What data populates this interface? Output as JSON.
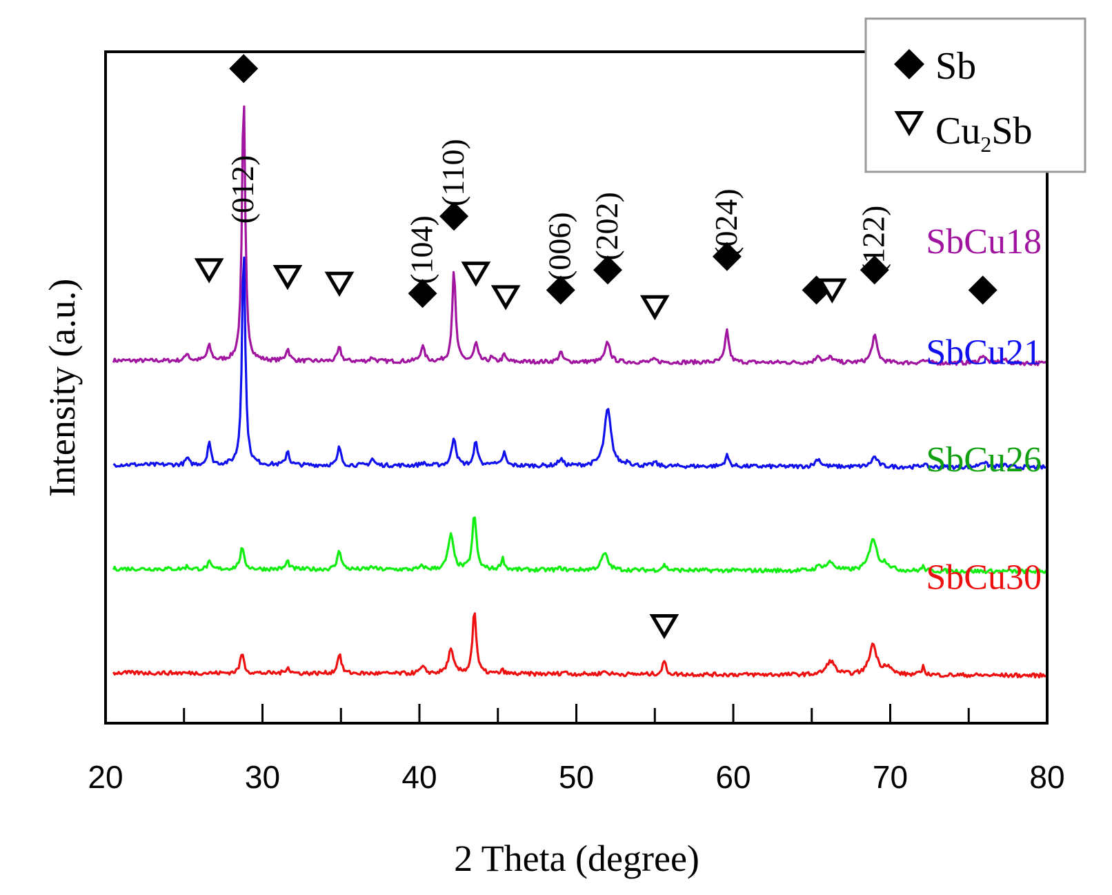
{
  "chart_data": {
    "type": "line",
    "title": "",
    "xlabel": "2 Theta (degree)",
    "ylabel": "Intensity (a.u.)",
    "xlim": [
      20,
      80
    ],
    "xticks": [
      "20",
      "30",
      "40",
      "50",
      "60",
      "70",
      "80"
    ],
    "legend": {
      "position": "top-right",
      "entries": [
        {
          "marker": "filled-diamond",
          "label": "Sb"
        },
        {
          "marker": "open-down-triangle",
          "label": "Cu",
          "subscript": "2",
          "label_suffix": "Sb"
        }
      ]
    },
    "series": [
      {
        "name": "SbCu18",
        "color": "#A0149F",
        "baseline": 0.54,
        "peaks": [
          [
            25.2,
            0.012,
            0.12
          ],
          [
            26.6,
            0.022,
            0.15
          ],
          [
            28.8,
            0.4,
            0.12
          ],
          [
            31.6,
            0.018,
            0.14
          ],
          [
            34.9,
            0.02,
            0.14
          ],
          [
            37.0,
            0.006,
            0.15
          ],
          [
            40.2,
            0.022,
            0.16
          ],
          [
            42.2,
            0.135,
            0.13
          ],
          [
            43.6,
            0.027,
            0.14
          ],
          [
            44.6,
            0.006,
            0.12
          ],
          [
            45.4,
            0.01,
            0.12
          ],
          [
            49.0,
            0.014,
            0.15
          ],
          [
            52.0,
            0.03,
            0.18
          ],
          [
            55.0,
            0.004,
            0.15
          ],
          [
            59.6,
            0.048,
            0.14
          ],
          [
            65.4,
            0.012,
            0.15
          ],
          [
            66.2,
            0.008,
            0.2
          ],
          [
            69.0,
            0.04,
            0.2
          ],
          [
            72.1,
            0.004,
            0.15
          ],
          [
            75.9,
            0.012,
            0.2
          ],
          [
            77.2,
            0.006,
            0.2
          ]
        ]
      },
      {
        "name": "SbCu21",
        "color": "#1010EE",
        "baseline": 0.385,
        "peaks": [
          [
            25.2,
            0.01,
            0.12
          ],
          [
            26.6,
            0.035,
            0.12
          ],
          [
            28.8,
            0.33,
            0.12
          ],
          [
            31.6,
            0.022,
            0.12
          ],
          [
            34.9,
            0.028,
            0.12
          ],
          [
            37.0,
            0.01,
            0.14
          ],
          [
            40.2,
            0.004,
            0.15
          ],
          [
            42.2,
            0.043,
            0.16
          ],
          [
            43.6,
            0.038,
            0.13
          ],
          [
            44.6,
            0.006,
            0.12
          ],
          [
            45.4,
            0.02,
            0.12
          ],
          [
            49.0,
            0.01,
            0.18
          ],
          [
            52.0,
            0.085,
            0.25
          ],
          [
            53.3,
            0.006,
            0.14
          ],
          [
            55.0,
            0.006,
            0.13
          ],
          [
            59.6,
            0.016,
            0.15
          ],
          [
            65.4,
            0.012,
            0.2
          ],
          [
            69.0,
            0.015,
            0.22
          ],
          [
            72.1,
            0.004,
            0.15
          ],
          [
            75.9,
            0.008,
            0.25
          ],
          [
            77.2,
            0.004,
            0.2
          ]
        ]
      },
      {
        "name": "SbCu26",
        "color": "#10EE10",
        "baseline": 0.23,
        "peaks": [
          [
            25.2,
            0.004,
            0.12
          ],
          [
            26.6,
            0.01,
            0.12
          ],
          [
            28.7,
            0.03,
            0.16
          ],
          [
            31.6,
            0.012,
            0.13
          ],
          [
            34.9,
            0.03,
            0.14
          ],
          [
            37.0,
            0.004,
            0.15
          ],
          [
            40.2,
            0.005,
            0.15
          ],
          [
            42.0,
            0.052,
            0.2
          ],
          [
            43.5,
            0.082,
            0.15
          ],
          [
            45.3,
            0.017,
            0.13
          ],
          [
            49.0,
            0.003,
            0.15
          ],
          [
            51.8,
            0.025,
            0.24
          ],
          [
            55.6,
            0.008,
            0.15
          ],
          [
            65.5,
            0.006,
            0.25
          ],
          [
            66.2,
            0.012,
            0.3
          ],
          [
            68.9,
            0.048,
            0.28
          ],
          [
            69.7,
            0.01,
            0.3
          ],
          [
            72.1,
            0.006,
            0.12
          ]
        ]
      },
      {
        "name": "SbCu30",
        "color": "#EE1010",
        "baseline": 0.075,
        "peaks": [
          [
            28.7,
            0.03,
            0.14
          ],
          [
            31.6,
            0.01,
            0.13
          ],
          [
            34.9,
            0.03,
            0.14
          ],
          [
            40.2,
            0.009,
            0.2
          ],
          [
            42.0,
            0.035,
            0.2
          ],
          [
            43.5,
            0.095,
            0.14
          ],
          [
            45.3,
            0.005,
            0.12
          ],
          [
            49.2,
            0.004,
            0.15
          ],
          [
            51.8,
            0.004,
            0.2
          ],
          [
            55.6,
            0.02,
            0.13
          ],
          [
            66.2,
            0.021,
            0.3
          ],
          [
            68.9,
            0.045,
            0.28
          ],
          [
            69.8,
            0.012,
            0.3
          ],
          [
            72.1,
            0.012,
            0.12
          ]
        ]
      }
    ],
    "series_labels": [
      {
        "text": "SbCu18",
        "color": "#A0149F"
      },
      {
        "text": "SbCu21",
        "color": "#1010EE"
      },
      {
        "text": "SbCu26",
        "color": "#10A010"
      },
      {
        "text": "SbCu30",
        "color": "#EE1010"
      }
    ],
    "peak_labels": [
      {
        "text": "(012)",
        "x": 28.8
      },
      {
        "text": "(104)",
        "x": 40.2
      },
      {
        "text": "(110)",
        "x": 42.2
      },
      {
        "text": "(006)",
        "x": 49.0
      },
      {
        "text": "(202)",
        "x": 52.0
      },
      {
        "text": "(024)",
        "x": 59.6
      },
      {
        "text": "(122)",
        "x": 69.0
      }
    ],
    "markers": [
      {
        "type": "Sb",
        "x": 28.8,
        "y": 0.975
      },
      {
        "type": "Sb",
        "x": 42.2,
        "y": 0.755
      },
      {
        "type": "Sb",
        "x": 40.2,
        "y": 0.64
      },
      {
        "type": "Sb",
        "x": 49.0,
        "y": 0.645
      },
      {
        "type": "Sb",
        "x": 52.0,
        "y": 0.675
      },
      {
        "type": "Sb",
        "x": 59.6,
        "y": 0.695
      },
      {
        "type": "Sb",
        "x": 65.3,
        "y": 0.645
      },
      {
        "type": "Sb",
        "x": 69.0,
        "y": 0.675
      },
      {
        "type": "Sb",
        "x": 75.9,
        "y": 0.645
      },
      {
        "type": "Cu2Sb",
        "x": 26.6,
        "y": 0.675
      },
      {
        "type": "Cu2Sb",
        "x": 31.6,
        "y": 0.665
      },
      {
        "type": "Cu2Sb",
        "x": 34.9,
        "y": 0.655
      },
      {
        "type": "Cu2Sb",
        "x": 43.6,
        "y": 0.67
      },
      {
        "type": "Cu2Sb",
        "x": 45.5,
        "y": 0.635
      },
      {
        "type": "Cu2Sb",
        "x": 55.0,
        "y": 0.62
      },
      {
        "type": "Cu2Sb",
        "x": 66.3,
        "y": 0.645
      },
      {
        "type": "Cu2Sb",
        "x": 55.6,
        "y": 0.145
      }
    ]
  }
}
